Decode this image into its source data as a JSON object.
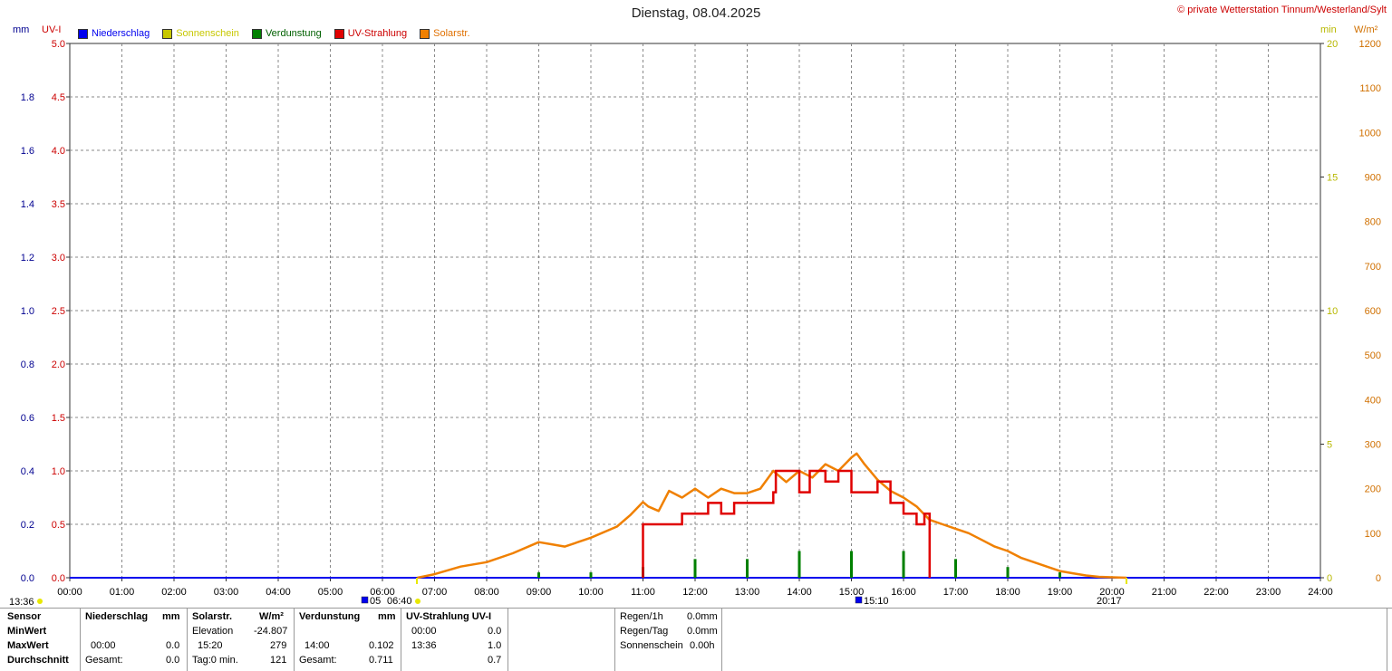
{
  "title": "Dienstag, 08.04.2025",
  "copyright": "© private Wetterstation Tinnum/Westerland/Sylt",
  "units": {
    "mm": "mm",
    "uv": "UV-I",
    "min": "min",
    "wm2": "W/m²"
  },
  "colors": {
    "niederschlag": "#0000ee",
    "sonnenschein": "#c8c800",
    "verdunstung": "#008000",
    "uv": "#e00000",
    "solar": "#f08000",
    "grid": "#888888",
    "axis_left_mm": "#000090",
    "axis_left_uv": "#cc0000",
    "axis_right_min": "#b8b800",
    "axis_right_wm2": "#d07000"
  },
  "legend": [
    {
      "label": "Niederschlag",
      "color": "#0000ee"
    },
    {
      "label": "Sonnenschein",
      "color": "#c8c800"
    },
    {
      "label": "Verdunstung",
      "color": "#008000"
    },
    {
      "label": "UV-Strahlung",
      "color": "#e00000"
    },
    {
      "label": "Solarstr.",
      "color": "#f08000"
    }
  ],
  "chart_data": {
    "type": "line",
    "title": "Dienstag, 08.04.2025",
    "x_ticks": [
      "00:00",
      "01:00",
      "02:00",
      "03:00",
      "04:00",
      "05:00",
      "06:00",
      "07:00",
      "08:00",
      "09:00",
      "10:00",
      "11:00",
      "12:00",
      "13:00",
      "14:00",
      "15:00",
      "16:00",
      "17:00",
      "18:00",
      "19:00",
      "20:00",
      "21:00",
      "22:00",
      "23:00",
      "24:00"
    ],
    "axes": {
      "mm": {
        "range": [
          0,
          2.0
        ],
        "ticks": [
          "0.0",
          "0.2",
          "0.4",
          "0.6",
          "0.8",
          "1.0",
          "1.2",
          "1.4",
          "1.6",
          "1.8"
        ]
      },
      "uv": {
        "range": [
          0,
          5.0
        ],
        "ticks": [
          "0.0",
          "0.5",
          "1.0",
          "1.5",
          "2.0",
          "2.5",
          "3.0",
          "3.5",
          "4.0",
          "4.5",
          "5.0"
        ]
      },
      "min": {
        "range": [
          0,
          20
        ],
        "ticks": [
          "0",
          "5",
          "10",
          "15",
          "20"
        ]
      },
      "wm2": {
        "range": [
          0,
          1200
        ],
        "ticks": [
          "0",
          "100",
          "200",
          "300",
          "400",
          "500",
          "600",
          "700",
          "800",
          "900",
          "1000",
          "1100",
          "1200"
        ]
      }
    },
    "grid": true,
    "legend_placement": "top-left",
    "markers": [
      {
        "time": "13:36",
        "label": "13:36"
      },
      {
        "time": "06:40",
        "label": "06:40"
      },
      {
        "time": "15:10",
        "label": "15:10"
      },
      {
        "time": "20:17",
        "label": "20:17"
      }
    ],
    "sunrise_marker_label": "05",
    "series": [
      {
        "name": "Solarstr.",
        "unit": "W/m²",
        "x": [
          6.67,
          7.0,
          7.5,
          8.0,
          8.5,
          9.0,
          9.25,
          9.5,
          10.0,
          10.5,
          10.75,
          11.0,
          11.1,
          11.3,
          11.5,
          11.75,
          12.0,
          12.25,
          12.5,
          12.75,
          13.0,
          13.25,
          13.5,
          13.6,
          13.75,
          14.0,
          14.25,
          14.5,
          14.75,
          15.0,
          15.1,
          15.25,
          15.5,
          15.75,
          16.0,
          16.25,
          16.5,
          16.75,
          17.0,
          17.25,
          17.5,
          17.75,
          18.0,
          18.25,
          18.5,
          18.75,
          19.0,
          19.25,
          19.5,
          19.75,
          20.0,
          20.28
        ],
        "y": [
          0,
          8,
          25,
          35,
          55,
          80,
          75,
          70,
          90,
          115,
          140,
          170,
          160,
          150,
          195,
          180,
          200,
          180,
          200,
          190,
          190,
          200,
          240,
          230,
          215,
          240,
          225,
          255,
          240,
          270,
          279,
          255,
          220,
          195,
          180,
          160,
          130,
          120,
          110,
          100,
          85,
          70,
          60,
          45,
          35,
          25,
          15,
          10,
          5,
          2,
          1,
          0
        ]
      },
      {
        "name": "UV-Strahlung",
        "unit": "UV-I",
        "x": [
          11.0,
          11.0,
          11.1,
          11.7,
          11.75,
          12.0,
          12.25,
          12.5,
          12.75,
          13.0,
          13.25,
          13.5,
          13.55,
          14.0,
          14.2,
          14.5,
          14.75,
          15.0,
          15.5,
          15.75,
          16.0,
          16.25,
          16.4,
          16.5,
          16.5
        ],
        "y": [
          0,
          0.5,
          0.5,
          0.5,
          0.6,
          0.6,
          0.7,
          0.6,
          0.7,
          0.7,
          0.7,
          0.8,
          1.0,
          0.8,
          1.0,
          0.9,
          1.0,
          0.8,
          0.9,
          0.7,
          0.6,
          0.5,
          0.6,
          0.5,
          0
        ]
      },
      {
        "name": "Verdunstung",
        "unit": "mm",
        "x": [
          9.0,
          10.0,
          11.0,
          12.0,
          13.0,
          14.0,
          15.0,
          16.0,
          17.0,
          18.0,
          19.0
        ],
        "y": [
          0.02,
          0.02,
          0.04,
          0.07,
          0.07,
          0.1,
          0.1,
          0.1,
          0.07,
          0.04,
          0.02
        ]
      }
    ]
  },
  "stats": {
    "sensor": "Sensor",
    "minwert": "MinWert",
    "maxwert": "MaxWert",
    "durchschnitt": "Durchschnitt",
    "niederschlag": {
      "header": "Niederschlag",
      "unit": "mm",
      "max_time": "00:00",
      "max_value": "0.0",
      "sum_label": "Gesamt:",
      "sum_value": "0.0"
    },
    "solar": {
      "header": "Solarstr.",
      "unit": "W/m²",
      "min_label": "Elevation",
      "min_value": "-24.807",
      "max_time": "15:20",
      "max_value": "279",
      "avg_label": "Tag:0 min.",
      "avg_value": "121"
    },
    "verdunstung": {
      "header": "Verdunstung",
      "unit": "mm",
      "max_time": "14:00",
      "max_value": "0.102",
      "sum_label": "Gesamt:",
      "sum_value": "0.711"
    },
    "uv": {
      "header": "UV-Strahlung UV-I",
      "min_time": "00:00",
      "min_value": "0.0",
      "max_time": "13:36",
      "max_value": "1.0",
      "avg_value": "0.7"
    },
    "regen1h_label": "Regen/1h",
    "regen1h_value": "0.0mm",
    "regentag_label": "Regen/Tag",
    "regentag_value": "0.0mm",
    "sonne_label": "Sonnenschein",
    "sonne_value": "0.00h"
  }
}
